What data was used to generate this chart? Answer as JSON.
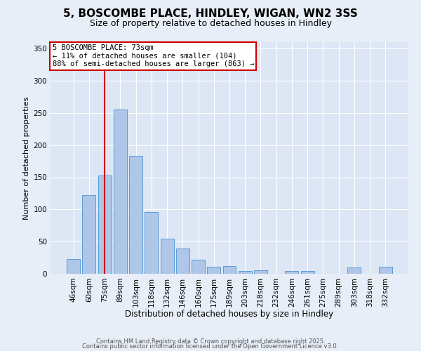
{
  "title": "5, BOSCOMBE PLACE, HINDLEY, WIGAN, WN2 3SS",
  "subtitle": "Size of property relative to detached houses in Hindley",
  "xlabel": "Distribution of detached houses by size in Hindley",
  "ylabel": "Number of detached properties",
  "bar_labels": [
    "46sqm",
    "60sqm",
    "75sqm",
    "89sqm",
    "103sqm",
    "118sqm",
    "132sqm",
    "146sqm",
    "160sqm",
    "175sqm",
    "189sqm",
    "203sqm",
    "218sqm",
    "232sqm",
    "246sqm",
    "261sqm",
    "275sqm",
    "289sqm",
    "303sqm",
    "318sqm",
    "332sqm"
  ],
  "bar_values": [
    23,
    122,
    153,
    255,
    183,
    96,
    55,
    39,
    22,
    11,
    12,
    4,
    6,
    0,
    4,
    4,
    0,
    0,
    10,
    0,
    11
  ],
  "bar_color": "#aec6e8",
  "bar_edgecolor": "#5b9bd5",
  "vline_x": 2,
  "vline_color": "#cc0000",
  "annotation_title": "5 BOSCOMBE PLACE: 73sqm",
  "annotation_line1": "← 11% of detached houses are smaller (104)",
  "annotation_line2": "88% of semi-detached houses are larger (863) →",
  "annotation_box_edgecolor": "#cc0000",
  "annotation_box_facecolor": "#ffffff",
  "ylim": [
    0,
    360
  ],
  "yticks": [
    0,
    50,
    100,
    150,
    200,
    250,
    300,
    350
  ],
  "bg_color": "#e8eef7",
  "plot_bg_color": "#dce6f5",
  "footer1": "Contains HM Land Registry data © Crown copyright and database right 2025.",
  "footer2": "Contains public sector information licensed under the Open Government Licence v3.0.",
  "title_fontsize": 11,
  "subtitle_fontsize": 9,
  "xlabel_fontsize": 8.5,
  "ylabel_fontsize": 8,
  "tick_fontsize": 7.5,
  "footer_fontsize": 6
}
